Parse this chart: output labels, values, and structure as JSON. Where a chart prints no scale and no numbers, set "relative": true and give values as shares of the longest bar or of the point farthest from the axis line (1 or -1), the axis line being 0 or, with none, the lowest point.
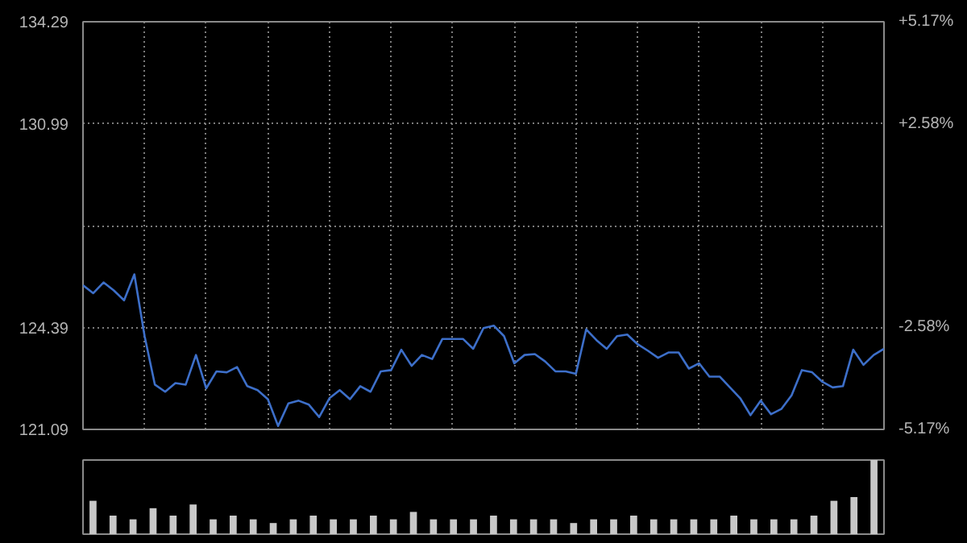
{
  "chart_data": [
    {
      "type": "line",
      "grid": true,
      "tick_labels": "y",
      "categories": [
        null,
        null,
        null,
        null,
        null,
        null,
        null,
        null,
        null,
        null,
        null,
        null,
        null,
        null,
        null,
        null,
        null,
        null,
        null,
        null,
        null,
        null,
        null,
        null,
        null,
        null,
        null,
        null,
        null,
        null,
        null,
        null,
        null,
        null,
        null,
        null,
        null,
        null,
        null,
        null,
        null,
        null,
        null,
        null,
        null,
        null,
        null,
        null,
        null,
        null,
        null,
        null,
        null,
        null,
        null,
        null,
        null,
        null,
        null,
        null,
        null,
        null,
        null,
        null,
        null,
        null,
        null,
        null,
        null,
        null,
        null,
        null,
        null,
        null,
        null,
        null,
        null,
        null,
        null
      ],
      "series": [
        {
          "color": "#3d6fc9",
          "values": [
            125.76,
            125.5,
            125.85,
            125.59,
            125.27,
            126.11,
            124.11,
            122.54,
            122.31,
            122.59,
            122.54,
            123.5,
            122.42,
            122.97,
            122.94,
            123.11,
            122.49,
            122.36,
            122.07,
            121.2,
            121.93,
            122.02,
            121.89,
            121.49,
            122.1,
            122.36,
            122.07,
            122.49,
            122.31,
            122.97,
            123.01,
            123.67,
            123.15,
            123.5,
            123.37,
            124.02,
            124.02,
            124.02,
            123.7,
            124.37,
            124.45,
            124.11,
            123.23,
            123.5,
            123.53,
            123.29,
            122.97,
            122.97,
            122.89,
            124.33,
            123.98,
            123.7,
            124.11,
            124.16,
            123.85,
            123.64,
            123.41,
            123.58,
            123.58,
            123.06,
            123.23,
            122.8,
            122.8,
            122.45,
            122.1,
            121.55,
            122.02,
            121.58,
            121.75,
            122.19,
            123.01,
            122.94,
            122.63,
            122.45,
            122.49,
            123.67,
            123.18,
            123.5,
            123.7
          ]
        }
      ],
      "ylim": [
        121.09,
        134.29
      ],
      "yticks": [
        121.09,
        124.39,
        {
          "value": 127.69,
          "label": null
        },
        130.99,
        134.29
      ],
      "y2lim": [
        -5.17,
        5.17
      ],
      "y2ticks": [
        {
          "value": -5.17,
          "label": "-5.17%"
        },
        {
          "value": -2.58,
          "label": "-2.58%"
        },
        {
          "value": 0,
          "label": null
        },
        {
          "value": 2.58,
          "label": "+2.58%"
        },
        {
          "value": 5.17,
          "label": "+5.17%"
        }
      ]
    },
    {
      "type": "bar",
      "relative": true,
      "color": "#c8c8c8",
      "tick_labels": false,
      "categories": [
        null,
        null,
        null,
        null,
        null,
        null,
        null,
        null,
        null,
        null,
        null,
        null,
        null,
        null,
        null,
        null,
        null,
        null,
        null,
        null,
        null,
        null,
        null,
        null,
        null,
        null,
        null,
        null,
        null,
        null,
        null,
        null,
        null,
        null,
        null,
        null,
        null,
        null,
        null,
        null
      ],
      "values": [
        0.45,
        0.25,
        0.2,
        0.35,
        0.25,
        0.4,
        0.2,
        0.25,
        0.2,
        0.15,
        0.2,
        0.25,
        0.2,
        0.2,
        0.25,
        0.2,
        0.3,
        0.2,
        0.2,
        0.2,
        0.25,
        0.2,
        0.2,
        0.2,
        0.15,
        0.2,
        0.2,
        0.25,
        0.2,
        0.2,
        0.2,
        0.2,
        0.25,
        0.2,
        0.2,
        0.2,
        0.25,
        0.45,
        0.5,
        1.0
      ]
    }
  ]
}
